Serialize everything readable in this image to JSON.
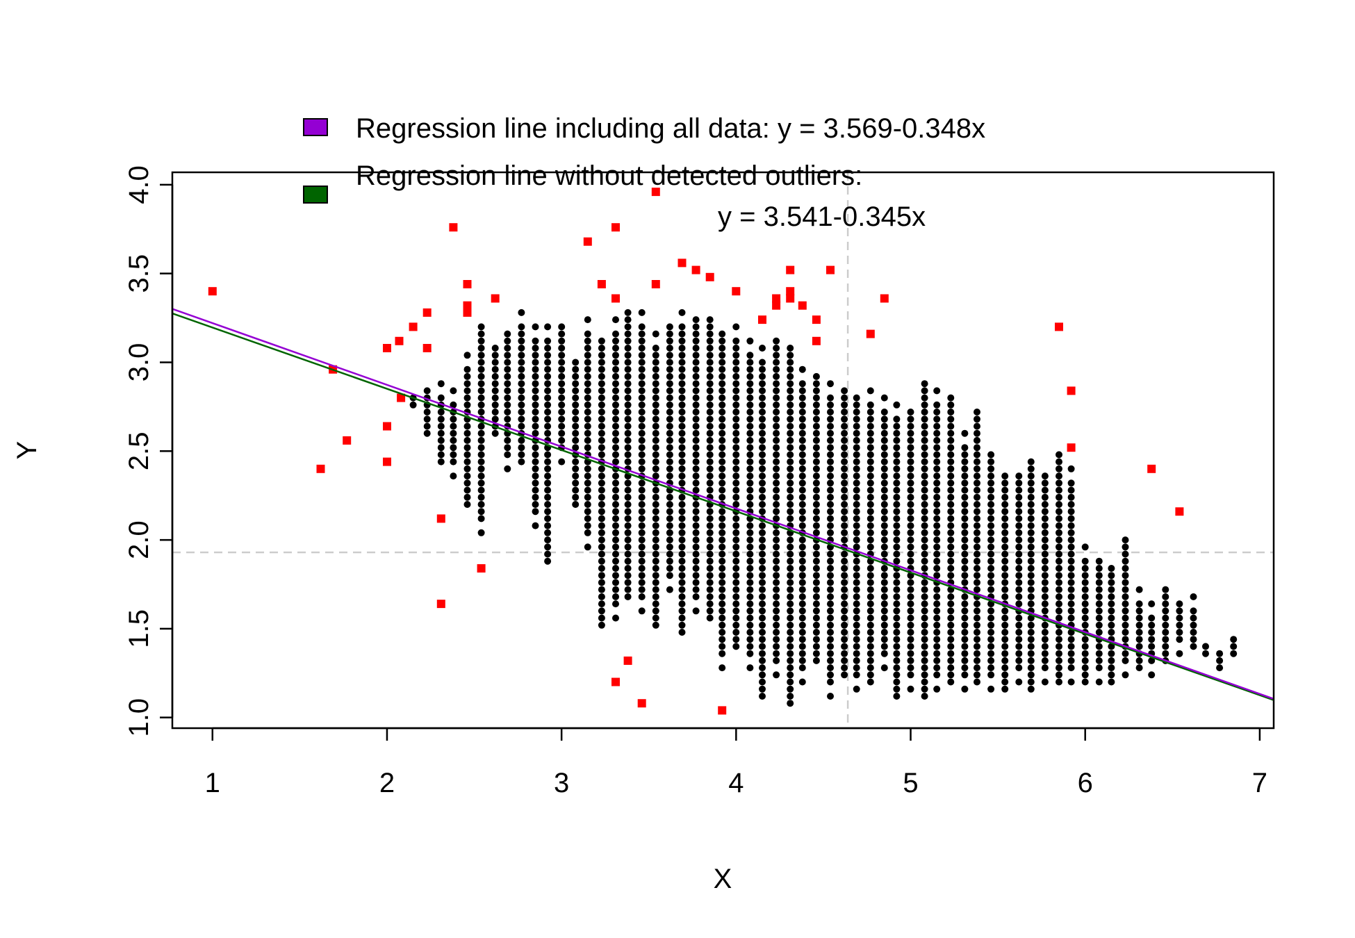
{
  "chart_data": {
    "type": "scatter",
    "xlabel": "X",
    "ylabel": "Y",
    "xlim": [
      0.77,
      7.08
    ],
    "ylim": [
      0.94,
      4.07
    ],
    "x_ticks": [
      1,
      2,
      3,
      4,
      5,
      6,
      7
    ],
    "y_ticks": [
      1.0,
      1.5,
      2.0,
      2.5,
      3.0,
      3.5,
      4.0
    ],
    "y_tick_labels": [
      "1.0",
      "1.5",
      "2.0",
      "2.5",
      "3.0",
      "3.5",
      "4.0"
    ],
    "reference_lines": {
      "x_mean": 4.64,
      "y_mean": 1.93
    },
    "colors": {
      "inlier": "#000000",
      "outlier": "#ff0000",
      "line_all": "#9400d3",
      "line_clean": "#006400",
      "reference": "#cccccc"
    },
    "legend": {
      "placement": "top",
      "entries": [
        {
          "label": "Regression line including all data: y = 3.569-0.348x",
          "color": "#9400d3"
        },
        {
          "label": "Regression line without detected outliers:",
          "label2": "y = 3.541-0.345x",
          "color": "#006400"
        }
      ]
    },
    "lines": [
      {
        "name": "all",
        "intercept": 3.569,
        "slope": -0.348,
        "color": "#9400d3"
      },
      {
        "name": "clean",
        "intercept": 3.541,
        "slope": -0.345,
        "color": "#006400"
      }
    ],
    "series": [
      {
        "role": "outliers",
        "points": [
          [
            1.0,
            3.4
          ],
          [
            1.62,
            2.4
          ],
          [
            1.69,
            2.96
          ],
          [
            1.77,
            2.56
          ],
          [
            2.0,
            3.08
          ],
          [
            2.0,
            2.64
          ],
          [
            2.0,
            2.44
          ],
          [
            2.07,
            3.12
          ],
          [
            2.08,
            2.8
          ],
          [
            2.15,
            3.2
          ],
          [
            2.23,
            3.28
          ],
          [
            2.23,
            3.08
          ],
          [
            2.31,
            2.12
          ],
          [
            2.31,
            1.64
          ],
          [
            2.38,
            3.76
          ],
          [
            2.46,
            3.44
          ],
          [
            2.46,
            3.32
          ],
          [
            2.46,
            3.28
          ],
          [
            2.54,
            1.84
          ],
          [
            2.62,
            3.36
          ],
          [
            3.15,
            3.68
          ],
          [
            3.23,
            3.44
          ],
          [
            3.31,
            3.76
          ],
          [
            3.31,
            3.36
          ],
          [
            3.31,
            1.2
          ],
          [
            3.38,
            1.32
          ],
          [
            3.46,
            1.08
          ],
          [
            3.54,
            3.96
          ],
          [
            3.54,
            3.44
          ],
          [
            3.69,
            3.56
          ],
          [
            3.77,
            3.52
          ],
          [
            3.85,
            3.48
          ],
          [
            3.92,
            1.04
          ],
          [
            4.0,
            3.4
          ],
          [
            4.15,
            3.24
          ],
          [
            4.23,
            3.36
          ],
          [
            4.23,
            3.32
          ],
          [
            4.31,
            3.52
          ],
          [
            4.31,
            3.4
          ],
          [
            4.31,
            3.36
          ],
          [
            4.38,
            3.32
          ],
          [
            4.46,
            3.24
          ],
          [
            4.46,
            3.12
          ],
          [
            4.54,
            3.52
          ],
          [
            4.77,
            3.16
          ],
          [
            4.85,
            3.36
          ],
          [
            5.85,
            3.2
          ],
          [
            5.92,
            2.84
          ],
          [
            5.92,
            2.52
          ],
          [
            6.38,
            2.4
          ],
          [
            6.54,
            2.16
          ]
        ]
      }
    ],
    "inlier_columns": [
      [
        2.15,
        2.76,
        2.8
      ],
      [
        2.23,
        2.6,
        2.84
      ],
      [
        2.31,
        2.44,
        2.88
      ],
      [
        2.38,
        2.36,
        2.84
      ],
      [
        2.46,
        2.2,
        3.04
      ],
      [
        2.54,
        2.04,
        3.2
      ],
      [
        2.62,
        2.6,
        3.08
      ],
      [
        2.69,
        2.4,
        3.16
      ],
      [
        2.77,
        2.44,
        3.28
      ],
      [
        2.85,
        2.08,
        3.2
      ],
      [
        2.92,
        1.88,
        3.2
      ],
      [
        3.0,
        2.44,
        3.2
      ],
      [
        3.08,
        2.2,
        3.0
      ],
      [
        3.15,
        1.96,
        3.24
      ],
      [
        3.23,
        1.52,
        3.12
      ],
      [
        3.31,
        1.56,
        3.24
      ],
      [
        3.38,
        1.68,
        3.28
      ],
      [
        3.46,
        1.6,
        3.28
      ],
      [
        3.54,
        1.52,
        3.16
      ],
      [
        3.62,
        1.72,
        3.2
      ],
      [
        3.69,
        1.48,
        3.28
      ],
      [
        3.77,
        1.6,
        3.24
      ],
      [
        3.85,
        1.56,
        3.24
      ],
      [
        3.92,
        1.28,
        3.16
      ],
      [
        4.0,
        1.4,
        3.2
      ],
      [
        4.08,
        1.28,
        3.12
      ],
      [
        4.15,
        1.12,
        3.08
      ],
      [
        4.23,
        1.24,
        3.12
      ],
      [
        4.31,
        1.08,
        3.08
      ],
      [
        4.38,
        1.2,
        2.96
      ],
      [
        4.46,
        1.32,
        2.92
      ],
      [
        4.54,
        1.12,
        2.88
      ],
      [
        4.62,
        1.24,
        2.84
      ],
      [
        4.69,
        1.16,
        2.8
      ],
      [
        4.77,
        1.2,
        2.84
      ],
      [
        4.85,
        1.28,
        2.8
      ],
      [
        4.92,
        1.12,
        2.76
      ],
      [
        5.0,
        1.16,
        2.72
      ],
      [
        5.08,
        1.12,
        2.88
      ],
      [
        5.15,
        1.16,
        2.84
      ],
      [
        5.23,
        1.2,
        2.8
      ],
      [
        5.31,
        1.16,
        2.6
      ],
      [
        5.38,
        1.2,
        2.72
      ],
      [
        5.46,
        1.16,
        2.48
      ],
      [
        5.54,
        1.16,
        2.36
      ],
      [
        5.62,
        1.2,
        2.36
      ],
      [
        5.69,
        1.16,
        2.44
      ],
      [
        5.77,
        1.2,
        2.36
      ],
      [
        5.85,
        1.2,
        2.48
      ],
      [
        5.92,
        1.2,
        2.4
      ],
      [
        6.0,
        1.2,
        1.96
      ],
      [
        6.08,
        1.2,
        1.88
      ],
      [
        6.15,
        1.2,
        1.84
      ],
      [
        6.23,
        1.24,
        2.0
      ],
      [
        6.31,
        1.28,
        1.72
      ],
      [
        6.38,
        1.24,
        1.64
      ],
      [
        6.46,
        1.32,
        1.72
      ],
      [
        6.54,
        1.36,
        1.64
      ],
      [
        6.62,
        1.4,
        1.68
      ],
      [
        6.69,
        1.36,
        1.4
      ],
      [
        6.77,
        1.28,
        1.36
      ],
      [
        6.85,
        1.36,
        1.44
      ]
    ]
  }
}
